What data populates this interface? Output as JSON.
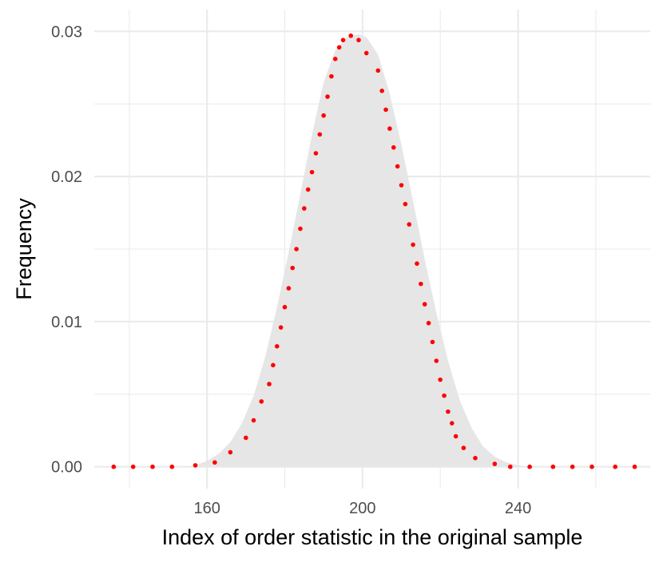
{
  "chart_data": {
    "type": "area",
    "title": "",
    "xlabel": "Index of order statistic in the original sample",
    "ylabel": "Frequency",
    "xlim": [
      131,
      274
    ],
    "ylim": [
      -0.0015,
      0.0315
    ],
    "x_ticks": [
      160,
      200,
      240
    ],
    "x_tick_labels": [
      "160",
      "200",
      "240"
    ],
    "x_minor_ticks": [
      140,
      180,
      220,
      260
    ],
    "y_ticks": [
      0,
      0.01,
      0.02,
      0.03
    ],
    "y_tick_labels": [
      "0.00",
      "0.01",
      "0.02",
      "0.03"
    ],
    "y_minor_ticks": [
      0.005,
      0.015,
      0.025
    ],
    "grid": true,
    "area_color": "#e6e6e6",
    "point_color": "#ff0000",
    "series": [
      {
        "kind": "area",
        "x": [
          155,
          158,
          160,
          163,
          166,
          169,
          172,
          175,
          178,
          181,
          184,
          187,
          190,
          193,
          196,
          199,
          201,
          204,
          207,
          210,
          213,
          216,
          219,
          222,
          225,
          228,
          231,
          234,
          237,
          240,
          243
        ],
        "y": [
          0.0,
          0.0002,
          0.0004,
          0.0009,
          0.0017,
          0.003,
          0.0049,
          0.0076,
          0.011,
          0.0148,
          0.0188,
          0.0229,
          0.0265,
          0.0287,
          0.0296,
          0.0298,
          0.0296,
          0.0284,
          0.0257,
          0.0222,
          0.0183,
          0.0143,
          0.0106,
          0.0073,
          0.0046,
          0.0027,
          0.0014,
          0.0007,
          0.0003,
          0.0001,
          0.0
        ]
      },
      {
        "kind": "points",
        "x": [
          136,
          141,
          146,
          151,
          157,
          162,
          166,
          170,
          172,
          174,
          176,
          177,
          178,
          179,
          180,
          181,
          182,
          183,
          184,
          185,
          186,
          187,
          188,
          189,
          190,
          191,
          192,
          193,
          194,
          195,
          197,
          199,
          201,
          204,
          205,
          206,
          207,
          208,
          209,
          210,
          211,
          212,
          213,
          214,
          215,
          216,
          217,
          218,
          219,
          220,
          221,
          222,
          223,
          224,
          226,
          229,
          234,
          238,
          243,
          249,
          254,
          259,
          265,
          270
        ],
        "y": [
          0.0,
          0.0,
          0.0,
          0.0,
          0.0001,
          0.0003,
          0.001,
          0.002,
          0.0032,
          0.0045,
          0.0057,
          0.007,
          0.0083,
          0.0096,
          0.011,
          0.0123,
          0.0137,
          0.015,
          0.0164,
          0.0178,
          0.0191,
          0.0203,
          0.0216,
          0.0229,
          0.0242,
          0.0255,
          0.0269,
          0.0281,
          0.0289,
          0.0294,
          0.0297,
          0.0294,
          0.0285,
          0.0273,
          0.0259,
          0.0246,
          0.0233,
          0.022,
          0.0207,
          0.0194,
          0.0181,
          0.0167,
          0.0153,
          0.014,
          0.0126,
          0.0112,
          0.0099,
          0.0086,
          0.0073,
          0.006,
          0.0049,
          0.0038,
          0.003,
          0.0021,
          0.0013,
          0.0006,
          0.0002,
          0.0,
          0.0,
          0.0,
          0.0,
          0.0,
          0.0,
          0.0
        ]
      }
    ]
  }
}
